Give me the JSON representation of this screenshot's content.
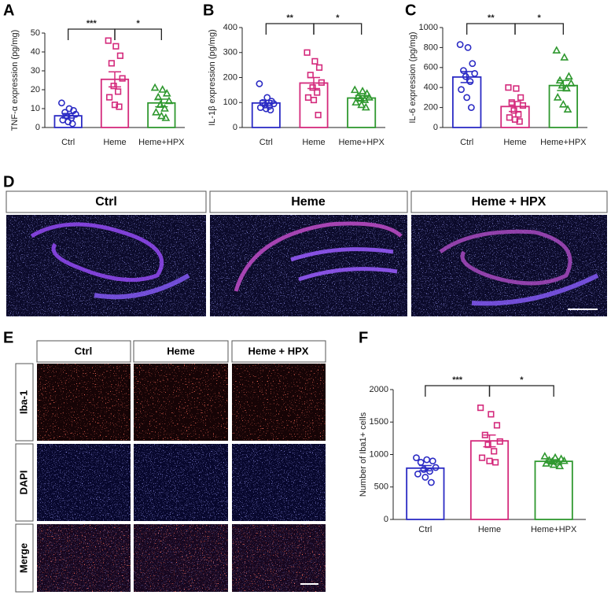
{
  "panels": [
    "A",
    "B",
    "C",
    "D",
    "E",
    "F"
  ],
  "chart_data": [
    {
      "type": "bar",
      "ylabel": "TNF-α expression (pg/mg)",
      "categories": [
        "Ctrl",
        "Heme",
        "Heme+HPX"
      ],
      "colors": [
        "#2b2bc4",
        "#d42a7c",
        "#2f982f"
      ],
      "markers": [
        "circle",
        "square",
        "triangle"
      ],
      "values": [
        6.2,
        25.5,
        13
      ],
      "errors": [
        1.2,
        4,
        2
      ],
      "points": [
        [
          13,
          10,
          9,
          8,
          7,
          6,
          5,
          4,
          3,
          2
        ],
        [
          46,
          43,
          38,
          34,
          26,
          22,
          19,
          16,
          12,
          11
        ],
        [
          21,
          20,
          18,
          16,
          14,
          12,
          10,
          8,
          6,
          5
        ]
      ],
      "annotations": [
        "***",
        "*"
      ],
      "ylim": [
        0,
        50
      ],
      "yticks": [
        0,
        10,
        20,
        30,
        40,
        50
      ]
    },
    {
      "type": "bar",
      "ylabel": "IL-1β expression (pg/mg)",
      "categories": [
        "Ctrl",
        "Heme",
        "Heme+HPX"
      ],
      "colors": [
        "#2b2bc4",
        "#d42a7c",
        "#2f982f"
      ],
      "markers": [
        "circle",
        "square",
        "triangle"
      ],
      "values": [
        98,
        178,
        118
      ],
      "errors": [
        10,
        22,
        10
      ],
      "points": [
        [
          175,
          120,
          105,
          100,
          95,
          90,
          85,
          80,
          75,
          70
        ],
        [
          300,
          265,
          240,
          210,
          180,
          160,
          140,
          120,
          110,
          50
        ],
        [
          150,
          145,
          135,
          125,
          120,
          115,
          110,
          100,
          90,
          80
        ]
      ],
      "annotations": [
        "**",
        "*"
      ],
      "ylim": [
        0,
        400
      ],
      "yticks": [
        0,
        100,
        200,
        300,
        400
      ]
    },
    {
      "type": "bar",
      "ylabel": "IL-6 expression (pg/mg)",
      "categories": [
        "Ctrl",
        "Heme",
        "Heme+HPX"
      ],
      "colors": [
        "#2b2bc4",
        "#d42a7c",
        "#2f982f"
      ],
      "markers": [
        "circle",
        "square",
        "triangle"
      ],
      "values": [
        505,
        210,
        420
      ],
      "errors": [
        55,
        50,
        50
      ],
      "points": [
        [
          830,
          800,
          640,
          570,
          540,
          510,
          460,
          380,
          300,
          200
        ],
        [
          400,
          390,
          300,
          250,
          220,
          170,
          130,
          100,
          80,
          60
        ],
        [
          770,
          700,
          510,
          470,
          440,
          420,
          390,
          300,
          230,
          180
        ]
      ],
      "annotations": [
        "**",
        "*"
      ],
      "ylim": [
        0,
        1000
      ],
      "yticks": [
        0,
        200,
        400,
        600,
        800,
        1000
      ]
    },
    {
      "type": "bar",
      "ylabel": "Number of Iba1+ cells",
      "categories": [
        "Ctrl",
        "Heme",
        "Heme+HPX"
      ],
      "colors": [
        "#2b2bc4",
        "#d42a7c",
        "#2f982f"
      ],
      "markers": [
        "circle",
        "square",
        "triangle"
      ],
      "values": [
        790,
        1210,
        895
      ],
      "errors": [
        40,
        90,
        25
      ],
      "points": [
        [
          950,
          920,
          900,
          880,
          800,
          770,
          740,
          700,
          650,
          570
        ],
        [
          1720,
          1620,
          1450,
          1300,
          1200,
          1150,
          1050,
          950,
          900,
          880
        ],
        [
          970,
          950,
          930,
          910,
          900,
          890,
          880,
          860,
          840,
          820
        ]
      ],
      "annotations": [
        "***",
        "*"
      ],
      "ylim": [
        0,
        2000
      ],
      "yticks": [
        0,
        500,
        1000,
        1500,
        2000
      ]
    }
  ],
  "images_d": {
    "labels": [
      "Ctrl",
      "Heme",
      "Heme + HPX"
    ]
  },
  "images_e": {
    "columns": [
      "Ctrl",
      "Heme",
      "Heme + HPX"
    ],
    "rows": [
      "Iba-1",
      "DAPI",
      "Merge"
    ]
  }
}
